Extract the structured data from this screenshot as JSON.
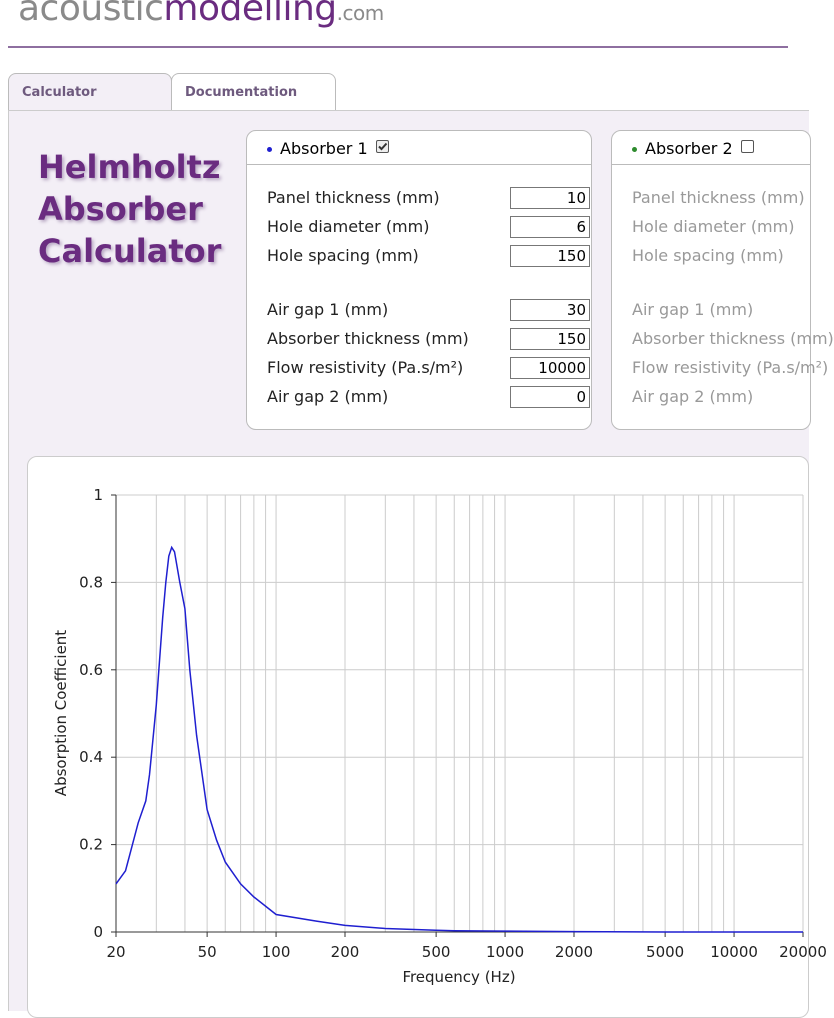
{
  "logo": {
    "name": "acoustic",
    "highlight": "modelling",
    "suffix": ".com"
  },
  "tabs": [
    "Calculator",
    "Documentation"
  ],
  "active_tab": 0,
  "title_lines": [
    "Helmholtz",
    "Absorber",
    "Calculator"
  ],
  "absorbers": [
    {
      "name": "Absorber 1",
      "checked": true,
      "dot_color": "#1f1fd0",
      "groups": [
        [
          {
            "label": "Panel thickness (mm)",
            "value": 10
          },
          {
            "label": "Hole diameter (mm)",
            "value": 6
          },
          {
            "label": "Hole spacing (mm)",
            "value": 150
          }
        ],
        [
          {
            "label": "Air gap 1 (mm)",
            "value": 30
          },
          {
            "label": "Absorber thickness (mm)",
            "value": 150
          },
          {
            "label": "Flow resistivity (Pa.s/m²)",
            "value": 10000
          },
          {
            "label": "Air gap 2 (mm)",
            "value": 0
          }
        ]
      ]
    },
    {
      "name": "Absorber 2",
      "checked": false,
      "dot_color": "#2e8b2e",
      "groups": [
        [
          {
            "label": "Panel thickness (mm)"
          },
          {
            "label": "Hole diameter (mm)"
          },
          {
            "label": "Hole spacing (mm)"
          }
        ],
        [
          {
            "label": "Air gap 1 (mm)"
          },
          {
            "label": "Absorber thickness (mm)"
          },
          {
            "label": "Flow resistivity (Pa.s/m²)"
          },
          {
            "label": "Air gap 2 (mm)"
          }
        ]
      ]
    }
  ],
  "chart_data": {
    "type": "line",
    "x_label": "Frequency (Hz)",
    "y_label": "Absorption Coefficient",
    "log_x": true,
    "grid": true,
    "x": [
      20,
      22,
      25,
      27,
      28,
      30,
      32,
      33,
      34,
      35,
      36,
      38,
      40,
      42,
      45,
      50,
      55,
      60,
      70,
      80,
      100,
      150,
      200,
      300,
      500,
      600,
      1000,
      2000,
      5000,
      20000
    ],
    "series": [
      {
        "name": "Absorber 1",
        "color": "#1f1fd0",
        "values": [
          0.11,
          0.14,
          0.25,
          0.3,
          0.36,
          0.52,
          0.72,
          0.8,
          0.86,
          0.88,
          0.87,
          0.8,
          0.74,
          0.6,
          0.45,
          0.28,
          0.21,
          0.16,
          0.11,
          0.08,
          0.04,
          0.025,
          0.015,
          0.008,
          0.004,
          0.003,
          0.002,
          0.001,
          0,
          0
        ]
      }
    ],
    "xlim": [
      20,
      20000
    ],
    "ylim": [
      0,
      1
    ],
    "xticks": [
      20,
      50,
      100,
      200,
      500,
      1000,
      2000,
      5000,
      10000,
      20000
    ],
    "x_minor_ticks": [
      30,
      40,
      60,
      70,
      80,
      90,
      300,
      400,
      600,
      700,
      800,
      900,
      3000,
      4000,
      6000,
      7000,
      8000,
      9000
    ],
    "yticks": [
      0,
      0.2,
      0.4,
      0.6,
      0.8,
      1
    ]
  }
}
